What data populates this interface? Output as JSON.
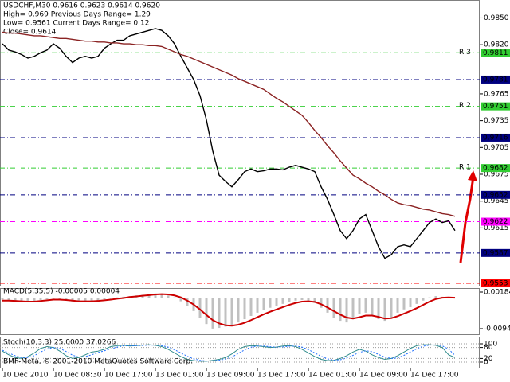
{
  "chart_data": [
    {
      "type": "line",
      "info": [
        "USDCHF,M30  0.9616 0.9623 0.9614 0.9620",
        "High= 0.969    Previous Days Range= 1.29",
        "Low= 0.9561   Current Days Range= 0.12",
        "Close= 0.9614"
      ],
      "categories": [
        "10 Dec 2010",
        null,
        null,
        null,
        null,
        null,
        null,
        null,
        "10 Dec 08:30",
        null,
        null,
        null,
        null,
        null,
        null,
        null,
        "10 Dec 17:00",
        null,
        null,
        null,
        null,
        null,
        null,
        null,
        "13 Dec 01:00",
        null,
        null,
        null,
        null,
        null,
        null,
        null,
        "13 Dec 09:00",
        null,
        null,
        null,
        null,
        null,
        null,
        null,
        "13 Dec 17:00",
        null,
        null,
        null,
        null,
        null,
        null,
        null,
        "14 Dec 01:00",
        null,
        null,
        null,
        null,
        null,
        null,
        null,
        "14 Dec 09:00",
        null,
        null,
        null,
        null,
        null,
        null,
        null,
        "14 Dec 17:00",
        null,
        null,
        null,
        null,
        null,
        null,
        null
      ],
      "series": [
        {
          "color": "#000000",
          "values": [
            0.9821,
            0.9814,
            0.9812,
            0.9809,
            0.9805,
            0.9807,
            0.9811,
            0.9814,
            0.9821,
            0.9816,
            0.9807,
            0.98,
            0.9805,
            0.9807,
            0.9805,
            0.9807,
            0.9816,
            0.9821,
            0.9825,
            0.9825,
            0.983,
            0.9832,
            0.9834,
            0.9836,
            0.9838,
            0.9836,
            0.983,
            0.9821,
            0.9807,
            0.9794,
            0.9781,
            0.9763,
            0.9736,
            0.9701,
            0.9674,
            0.9667,
            0.9661,
            0.9669,
            0.9678,
            0.9681,
            0.9678,
            0.9679,
            0.9681,
            0.9681,
            0.968,
            0.9683,
            0.9685,
            0.9683,
            0.9681,
            0.9678,
            0.9661,
            0.9647,
            0.963,
            0.9612,
            0.9603,
            0.9612,
            0.9625,
            0.963,
            0.9612,
            0.9594,
            0.9581,
            0.9585,
            0.9594,
            0.9596,
            0.9594,
            0.9603,
            0.9612,
            0.9621,
            0.9625,
            0.9621,
            0.9623,
            0.9612
          ]
        },
        {
          "color": "#8b2323",
          "values": [
            0.9834,
            0.9833,
            0.9833,
            0.9832,
            0.9831,
            0.983,
            0.983,
            0.9829,
            0.9828,
            0.9827,
            0.9827,
            0.9826,
            0.9825,
            0.9824,
            0.9824,
            0.9823,
            0.9823,
            0.9822,
            0.9822,
            0.9821,
            0.9821,
            0.982,
            0.982,
            0.9819,
            0.9819,
            0.9818,
            0.9815,
            0.9812,
            0.9809,
            0.9807,
            0.9804,
            0.9801,
            0.9798,
            0.9795,
            0.9792,
            0.9789,
            0.9786,
            0.9782,
            0.9779,
            0.9776,
            0.9773,
            0.977,
            0.9765,
            0.976,
            0.9756,
            0.9751,
            0.9746,
            0.9741,
            0.9733,
            0.9724,
            0.9716,
            0.9707,
            0.9699,
            0.969,
            0.9682,
            0.9674,
            0.967,
            0.9665,
            0.9661,
            0.9656,
            0.9652,
            0.9647,
            0.9643,
            0.9641,
            0.964,
            0.9638,
            0.9636,
            0.9635,
            0.9633,
            0.9631,
            0.963,
            0.9628
          ]
        }
      ],
      "ylim": [
        0.955,
        0.987
      ],
      "yticks": [
        {
          "value": 0.985,
          "label": "0.9850"
        },
        {
          "value": 0.982,
          "label": "0.9820"
        },
        {
          "value": 0.9765,
          "label": "0.9765"
        },
        {
          "value": 0.9735,
          "label": "0.9735"
        },
        {
          "value": 0.9705,
          "label": "0.9705"
        },
        {
          "value": 0.9675,
          "label": "0.9675"
        },
        {
          "value": 0.9645,
          "label": "0.9645"
        },
        {
          "value": 0.9615,
          "label": "0.9615"
        }
      ],
      "levels": [
        {
          "value": 0.9811,
          "label": "0.9811",
          "color": "#32cd32",
          "name": "R 3"
        },
        {
          "value": 0.9781,
          "label": "0.9781",
          "color": "#000080"
        },
        {
          "value": 0.9751,
          "label": "0.9751",
          "color": "#32cd32",
          "name": "R 2"
        },
        {
          "value": 0.9716,
          "label": "0.9716",
          "color": "#000080"
        },
        {
          "value": 0.9682,
          "label": "0.9682",
          "color": "#32cd32",
          "name": "R 1"
        },
        {
          "value": 0.9652,
          "label": "0.9652",
          "color": "#000080"
        },
        {
          "value": 0.9622,
          "label": "0.9622",
          "color": "#ff00ff"
        },
        {
          "value": 0.9587,
          "label": "0.9587",
          "color": "#000080"
        },
        {
          "value": 0.9553,
          "label": "0.9553",
          "color": "#ff0000"
        }
      ]
    },
    {
      "type": "macd",
      "title": "MACD(5,35,5) -0.00005 0.00004",
      "color": "#c0c0c0",
      "values": [
        -0.0005,
        -0.0008,
        -0.001,
        -0.0012,
        -0.0012,
        -0.001,
        -0.0006,
        -0.0004,
        -0.0002,
        -0.0004,
        -0.0008,
        -0.0012,
        -0.0012,
        -0.001,
        -0.001,
        -0.0008,
        -0.0004,
        -0.0002,
        0.0002,
        0.0004,
        0.0006,
        0.0008,
        0.001,
        0.0012,
        0.0014,
        0.0012,
        0.0008,
        0.0002,
        -0.001,
        -0.0025,
        -0.004,
        -0.006,
        -0.008,
        -0.0094,
        -0.0092,
        -0.0088,
        -0.0085,
        -0.0075,
        -0.0065,
        -0.0055,
        -0.0045,
        -0.0038,
        -0.003,
        -0.0024,
        -0.0018,
        -0.0012,
        -0.0008,
        -0.0006,
        -0.0008,
        -0.0015,
        -0.003,
        -0.0045,
        -0.006,
        -0.007,
        -0.0075,
        -0.0065,
        -0.005,
        -0.0045,
        -0.0055,
        -0.0065,
        -0.007,
        -0.006,
        -0.0045,
        -0.0035,
        -0.0028,
        -0.0018,
        -0.0008,
        0.0002,
        0.0006,
        0.0004,
        0.0002,
        -0.0001
      ],
      "series": [
        {
          "color": "#cc0000",
          "values": [
            -0.0008,
            -0.0008,
            -0.0009,
            -0.001,
            -0.0011,
            -0.0011,
            -0.0009,
            -0.0007,
            -0.0005,
            -0.0005,
            -0.0006,
            -0.0008,
            -0.001,
            -0.001,
            -0.001,
            -0.0009,
            -0.0007,
            -0.0005,
            -0.0002,
            0,
            0.0003,
            0.0005,
            0.0007,
            0.0009,
            0.0011,
            0.0012,
            0.0011,
            0.0008,
            0.0002,
            -0.0008,
            -0.002,
            -0.0035,
            -0.0052,
            -0.0068,
            -0.0078,
            -0.0084,
            -0.0085,
            -0.0082,
            -0.0076,
            -0.0068,
            -0.0059,
            -0.005,
            -0.0042,
            -0.0035,
            -0.0028,
            -0.0021,
            -0.0015,
            -0.0011,
            -0.001,
            -0.0012,
            -0.0019,
            -0.0029,
            -0.004,
            -0.0051,
            -0.006,
            -0.0063,
            -0.0059,
            -0.0054,
            -0.0054,
            -0.0058,
            -0.0063,
            -0.0062,
            -0.0056,
            -0.0048,
            -0.004,
            -0.0031,
            -0.0021,
            -0.0011,
            -0.0003,
            0.0001,
            0.0002,
            0.0001
          ]
        }
      ],
      "ylim": [
        -0.00943,
        0.00184
      ],
      "yticks": [
        0.00184,
        -0.00943
      ]
    },
    {
      "type": "line",
      "title": "Stoch(10,3,3) 25.0000 37.0266",
      "footer": "BMF-Meta, © 2001-2010 MetaQuotes Software Corp.",
      "series": [
        {
          "color": "#2e8b8b",
          "values": [
            60,
            40,
            25,
            20,
            30,
            50,
            75,
            85,
            80,
            60,
            35,
            20,
            25,
            40,
            55,
            60,
            70,
            85,
            90,
            92,
            88,
            90,
            93,
            95,
            92,
            85,
            70,
            50,
            30,
            15,
            8,
            5,
            5,
            10,
            15,
            25,
            45,
            70,
            85,
            90,
            88,
            85,
            80,
            82,
            88,
            90,
            85,
            70,
            50,
            30,
            15,
            8,
            10,
            20,
            35,
            55,
            70,
            60,
            40,
            25,
            15,
            20,
            35,
            55,
            75,
            90,
            95,
            95,
            92,
            80,
            40,
            25
          ]
        },
        {
          "color": "#1e6eff",
          "dashed": true,
          "values": [
            65,
            50,
            35,
            25,
            25,
            35,
            55,
            72,
            80,
            75,
            58,
            38,
            27,
            30,
            40,
            52,
            62,
            72,
            82,
            89,
            90,
            90,
            91,
            93,
            93,
            90,
            82,
            68,
            50,
            32,
            18,
            10,
            6,
            7,
            10,
            17,
            28,
            47,
            67,
            82,
            88,
            88,
            84,
            82,
            83,
            87,
            88,
            82,
            68,
            50,
            32,
            18,
            11,
            13,
            22,
            37,
            53,
            62,
            57,
            42,
            27,
            20,
            23,
            37,
            55,
            73,
            87,
            93,
            94,
            89,
            71,
            37
          ]
        }
      ],
      "ylim": [
        0,
        100
      ],
      "yticks": [
        0,
        20,
        80,
        100
      ],
      "grid": true
    }
  ]
}
